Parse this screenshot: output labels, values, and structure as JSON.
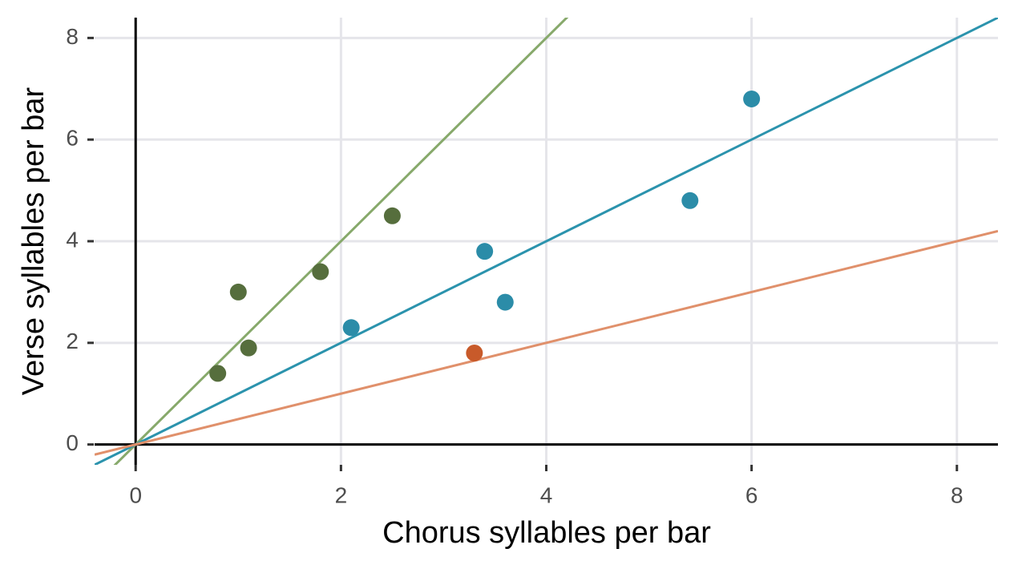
{
  "chart_data": {
    "type": "scatter",
    "xlabel": "Chorus syllables per bar",
    "ylabel": "Verse syllables per bar",
    "xlim": [
      -0.4,
      8.4
    ],
    "ylim": [
      -0.4,
      8.4
    ],
    "xticks": [
      0,
      2,
      4,
      6,
      8
    ],
    "yticks": [
      0,
      2,
      4,
      6,
      8
    ],
    "grid": true,
    "hlines": [
      0
    ],
    "vlines": [
      0
    ],
    "lines": [
      {
        "slope": 2,
        "color": "#87a96b"
      },
      {
        "slope": 1,
        "color": "#2b93ad"
      },
      {
        "slope": 0.5,
        "color": "#e0906b"
      }
    ],
    "series": [
      {
        "color": "#566e3d",
        "x": [
          0.8,
          1.0,
          1.1,
          1.8,
          2.5
        ],
        "values": [
          1.4,
          3.0,
          1.9,
          3.4,
          4.5
        ]
      },
      {
        "color": "#2b8ca8",
        "x": [
          2.1,
          3.4,
          3.6,
          5.4,
          6.0
        ],
        "values": [
          2.3,
          3.8,
          2.8,
          4.8,
          6.8
        ]
      },
      {
        "color": "#c85a2a",
        "x": [
          3.3
        ],
        "values": [
          1.8
        ]
      }
    ]
  }
}
